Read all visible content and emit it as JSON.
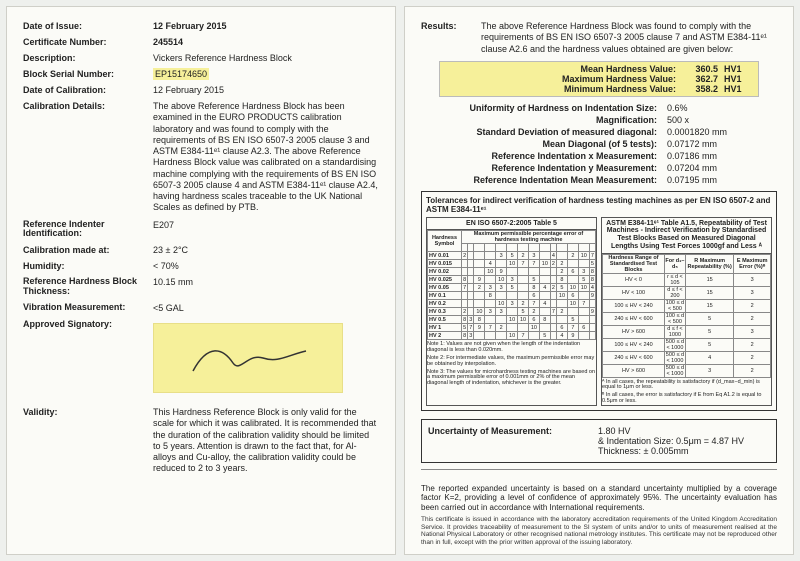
{
  "left": {
    "date_of_issue": {
      "label": "Date of Issue:",
      "value": "12 February 2015"
    },
    "cert_no": {
      "label": "Certificate Number:",
      "value": "245514"
    },
    "description": {
      "label": "Description:",
      "value": "Vickers Reference Hardness Block"
    },
    "serial": {
      "label": "Block Serial Number:",
      "value": "EP15174650"
    },
    "date_cal": {
      "label": "Date of Calibration:",
      "value": "12 February 2015"
    },
    "cal_details": {
      "label": "Calibration Details:",
      "value": "The above Reference Hardness Block has been examined in the EURO PRODUCTS calibration laboratory and was found to comply with the requirements of BS EN ISO 6507-3 2005 clause 3 and ASTM E384-11ᵉ¹ clause A2.3. The above Reference Hardness Block value was calibrated on a standardising machine complying with the requirements of BS EN ISO 6507-3 2005 clause 4 and ASTM E384-11ᵉ¹ clause A2.4, having hardness scales traceable to the UK National Scales as defined by PTB."
    },
    "indenter": {
      "label": "Reference Indenter Identification:",
      "value": "E207"
    },
    "cal_at": {
      "label": "Calibration made at:",
      "value": "23 ± 2°C"
    },
    "humidity": {
      "label": "Humidity:",
      "value": "< 70%"
    },
    "thickness": {
      "label": "Reference Hardness Block Thickness:",
      "value": "10.15 mm"
    },
    "vibration": {
      "label": "Vibration Measurement:",
      "value": "<5 GAL"
    },
    "signatory": {
      "label": "Approved Signatory:"
    },
    "validity": {
      "label": "Validity:",
      "value": "This Hardness Reference Block is only valid for the scale for which it was calibrated. It is recommended that the duration of the calibration validity should be limited to 5 years. Attention is drawn to the fact that, for Al-alloys and Cu-alloy, the calibration validity could be reduced to 2 to 3 years."
    }
  },
  "right": {
    "results_label": "Results:",
    "results_text": "The above Reference Hardness Block was found to comply with the requirements of BS EN ISO 6507-3 2005 clause 7 and ASTM E384-11ᵉ¹ clause A2.6 and the hardness values obtained are given below:",
    "hv": {
      "mean": {
        "k": "Mean Hardness Value:",
        "v": "360.5",
        "u": "HV1"
      },
      "max": {
        "k": "Maximum Hardness Value:",
        "v": "362.7",
        "u": "HV1"
      },
      "min": {
        "k": "Minimum Hardness Value:",
        "v": "358.2",
        "u": "HV1"
      }
    },
    "meas": [
      {
        "k": "Uniformity of Hardness on Indentation Size:",
        "v": "0.6%"
      },
      {
        "k": "Magnification:",
        "v": "500 x"
      },
      {
        "k": "Standard Deviation of measured diagonal:",
        "v": "0.0001820 mm"
      },
      {
        "k": "Mean Diagonal (of 5 tests):",
        "v": "0.07172 mm"
      },
      {
        "k": "Reference Indentation x Measurement:",
        "v": "0.07186 mm"
      },
      {
        "k": "Reference Indentation y Measurement:",
        "v": "0.07204 mm"
      },
      {
        "k": "Reference Indentation Mean Measurement:",
        "v": "0.07195 mm"
      }
    ],
    "tol": {
      "title": "Tolerances for indirect verification of hardness testing machines as per EN ISO 6507-2 and ASTM E384-11ᵉ¹",
      "left_head": "EN ISO 6507-2:2005 Table 5",
      "left_sub": "Maximum permissible percentage error of hardness testing machine",
      "right_head": "ASTM E384-11ᵉ¹ Table A1.5, Repeatability of Test Machines - Indirect Verification by Standardised Test Blocks Based on Measured Diagonal Lengths Using Test Forces 1000gf and Less ᴬ",
      "right_cols": [
        "Hardness Range of Standardised Test Blocks",
        "For d₁–d₅",
        "R Maximum Repeatability (%)",
        "E Maximum Error (%)ᴮ"
      ],
      "left_rows": [
        "HV 0.01",
        "HV 0.015",
        "HV 0.02",
        "HV 0.025",
        "HV 0.05",
        "HV 0.1",
        "HV 0.2",
        "HV 0.3",
        "HV 0.5",
        "HV 1",
        "HV 2"
      ],
      "right_rows": [
        [
          "HV < 0",
          "r ≤ d < 105",
          "15",
          "3"
        ],
        [
          "HV < 100",
          "d ≤ f < 200",
          "15",
          "3"
        ],
        [
          "100 ≤ HV < 240",
          "100 ≤ d < 500",
          "15",
          "2"
        ],
        [
          "240 ≤ HV < 600",
          "100 ≤ d < 500",
          "5",
          "2"
        ],
        [
          "HV > 600",
          "d ≤ f < 1000",
          "5",
          "3"
        ],
        [
          "100 ≤ HV < 240",
          "500 ≤ d < 1000",
          "5",
          "2"
        ],
        [
          "240 ≤ HV < 600",
          "500 ≤ d < 1000",
          "4",
          "2"
        ],
        [
          "HV > 600",
          "500 ≤ d < 1000",
          "3",
          "2"
        ]
      ],
      "note1": "Note 1: Values are not given when the length of the indentation diagonal is less than 0.020mm.",
      "note2": "Note 2: For intermediate values, the maximum permissible error may be obtained by interpolation.",
      "note3": "Note 3: The values for microhardness testing machines are based on a maximum permissible error of 0.001mm or 2% of the mean diagonal length of indentation, whichever is the greater.",
      "noteA": "ᴬ In all cases, the repeatability is satisfactory if (d_max−d_min) is equal to 1μm or less.",
      "noteB": "ᴮ In all cases, the error is satisfactory if E from Eq A1.2 is equal to 0.5μm or less."
    },
    "uncert": {
      "k": "Uncertainty of Measurement:",
      "v1": "1.80 HV",
      "v2": "& Indentation Size: 0.5μm = 4.87 HV",
      "v3": "Thickness: ± 0.005mm"
    },
    "foot_bold": "The reported expanded uncertainty is based on a standard uncertainty multiplied by a coverage factor K=2, providing a level of confidence of approximately 95%. The uncertainty evaluation has been carried out in accordance with International requirements.",
    "foot_fine": "This certificate is issued in accordance with the laboratory accreditation requirements of the United Kingdom Accreditation Service. It provides traceability of measurement to the SI system of units and/or to units of measurement realised at the National Physical Laboratory or other recognised national metrology institutes. This certificate may not be reproduced other than in full, except with the prior written approval of the issuing laboratory."
  }
}
